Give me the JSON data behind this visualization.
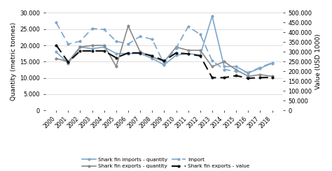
{
  "years": [
    2000,
    2001,
    2002,
    2003,
    2004,
    2005,
    2006,
    2007,
    2008,
    2009,
    2010,
    2011,
    2012,
    2013,
    2014,
    2015,
    2016,
    2017,
    2018
  ],
  "imports_quantity": [
    18000,
    14500,
    19500,
    19000,
    19500,
    17500,
    17500,
    17500,
    16000,
    14000,
    17000,
    17500,
    17000,
    29000,
    13500,
    13500,
    11500,
    13000,
    14500
  ],
  "exports_quantity": [
    16000,
    15000,
    19500,
    20000,
    20000,
    13500,
    26000,
    18000,
    16500,
    15000,
    19500,
    18500,
    18500,
    13500,
    15000,
    12500,
    10500,
    11000,
    10500
  ],
  "import_value": [
    450000,
    340000,
    355000,
    420000,
    415000,
    355000,
    340000,
    380000,
    365000,
    238000,
    320000,
    430000,
    390000,
    255000,
    210000,
    200000,
    195000,
    220000,
    245000
  ],
  "export_value": [
    335000,
    248000,
    305000,
    305000,
    305000,
    270000,
    295000,
    295000,
    280000,
    255000,
    295000,
    290000,
    280000,
    168000,
    168000,
    178000,
    165000,
    168000,
    170000
  ],
  "left_ylim": [
    0,
    30000
  ],
  "right_ylim": [
    0,
    500000
  ],
  "left_yticks": [
    0,
    5000,
    10000,
    15000,
    20000,
    25000,
    30000
  ],
  "right_yticks": [
    0,
    50000,
    100000,
    150000,
    200000,
    250000,
    300000,
    350000,
    400000,
    450000,
    500000
  ],
  "color_blue": "#7da6cc",
  "color_gray": "#888888",
  "color_black": "#111111",
  "ylabel_left": "Quantity (metric tonnes)",
  "ylabel_right": "Value (USD 1000)",
  "legend_items": [
    "Shark fin imports - quantity",
    "Shark fin exports - quantity",
    "Import",
    "Shark fin exports - value"
  ]
}
